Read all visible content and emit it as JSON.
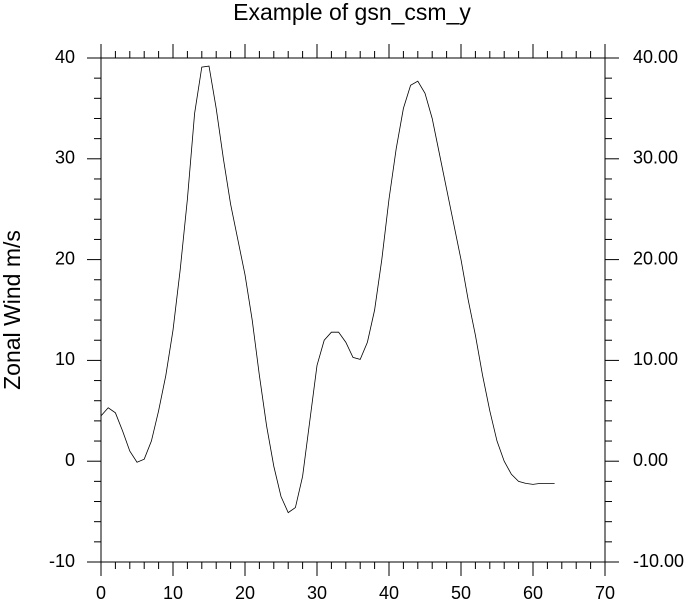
{
  "chart_data": {
    "type": "line",
    "title": "Example of gsn_csm_y",
    "y_label": "Zonal Wind m/s",
    "x": [
      0,
      1,
      2,
      3,
      4,
      5,
      6,
      7,
      8,
      9,
      10,
      11,
      12,
      13,
      14,
      15,
      16,
      17,
      18,
      19,
      20,
      21,
      22,
      23,
      24,
      25,
      26,
      27,
      28,
      29,
      30,
      31,
      32,
      33,
      34,
      35,
      36,
      37,
      38,
      39,
      40,
      41,
      42,
      43,
      44,
      45,
      46,
      47,
      48,
      49,
      50,
      51,
      52,
      53,
      54,
      55,
      56,
      57,
      58,
      59,
      60,
      61,
      62,
      63
    ],
    "series": [
      {
        "color": "#000000",
        "values": [
          4.5,
          5.3,
          4.8,
          3.0,
          1.0,
          -0.1,
          0.2,
          2.0,
          5.0,
          8.5,
          13,
          19,
          26,
          34.5,
          39.1,
          39.2,
          35,
          30,
          25.5,
          22,
          18.5,
          14,
          8.5,
          3.5,
          -0.5,
          -3.5,
          -5.1,
          -4.6,
          -1.5,
          4,
          9.5,
          12,
          12.8,
          12.8,
          11.8,
          10.3,
          10.1,
          11.8,
          15,
          20,
          26,
          31,
          35,
          37.3,
          37.7,
          36.5,
          34,
          30.5,
          27,
          23.5,
          20,
          16,
          12.5,
          8.5,
          5,
          2,
          0,
          -1.3,
          -2,
          -2.2,
          -2.3,
          -2.2,
          -2.2,
          -2.2
        ]
      }
    ],
    "xlim": [
      0,
      70
    ],
    "xticks": [
      0,
      10,
      20,
      30,
      40,
      50,
      60,
      70
    ],
    "ylim": [
      -10,
      40
    ],
    "yticks": [
      -10,
      0,
      10,
      20,
      30,
      40
    ],
    "y2lim": [
      -10,
      40
    ],
    "y2ticks": [
      {
        "value": -10,
        "label": "-10.00"
      },
      {
        "value": 0,
        "label": "0.00"
      },
      {
        "value": 10,
        "label": "10.00"
      },
      {
        "value": 20,
        "label": "20.00"
      },
      {
        "value": 30,
        "label": "30.00"
      },
      {
        "value": 40,
        "label": "40.00"
      }
    ]
  }
}
